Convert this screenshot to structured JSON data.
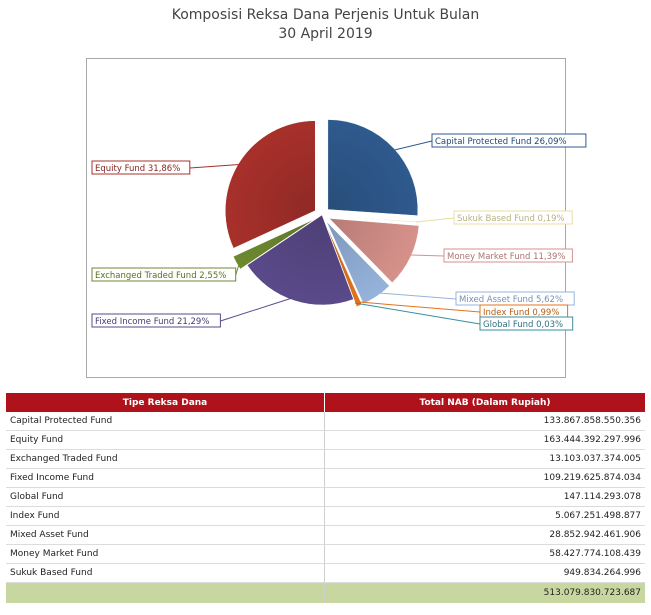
{
  "title_line1": "Komposisi Reksa Dana Perjenis Untuk Bulan",
  "title_line2": "30 April 2019",
  "chart_data": {
    "type": "pie",
    "title": "Komposisi Reksa Dana Perjenis Untuk Bulan 30 April 2019",
    "slices": [
      {
        "name": "Capital Protected Fund",
        "label": "Capital Protected Fund 26,09%",
        "value": 26.09,
        "color": "#2f5a8e",
        "exploded": true
      },
      {
        "name": "Sukuk Based Fund",
        "label": "Sukuk Based Fund 0,19%",
        "value": 0.19,
        "color": "#e8dfa0",
        "exploded": true
      },
      {
        "name": "Money Market Fund",
        "label": "Money Market Fund 11,39%",
        "value": 11.39,
        "color": "#d7918b",
        "exploded": true
      },
      {
        "name": "Mixed Asset Fund",
        "label": "Mixed Asset Fund 5,62%",
        "value": 5.62,
        "color": "#95b3dc",
        "exploded": true
      },
      {
        "name": "Index Fund",
        "label": "Index Fund 0,99%",
        "value": 0.99,
        "color": "#e2731c",
        "exploded": true
      },
      {
        "name": "Global Fund",
        "label": "Global Fund 0,03%",
        "value": 0.03,
        "color": "#3a8da0",
        "exploded": true
      },
      {
        "name": "Fixed Income Fund",
        "label": "Fixed Income Fund 21,29%",
        "value": 21.29,
        "color": "#5a4a8a",
        "exploded": false
      },
      {
        "name": "Exchanged Traded Fund",
        "label": "Exchanged Traded Fund 2,55%",
        "value": 2.55,
        "color": "#6e8a30",
        "exploded": true
      },
      {
        "name": "Equity Fund",
        "label": "Equity Fund 31,86%",
        "value": 31.86,
        "color": "#a8302b",
        "exploded": true
      }
    ]
  },
  "table": {
    "headers": [
      "Tipe Reksa Dana",
      "Total NAB (Dalam Rupiah)"
    ],
    "rows": [
      [
        "Capital Protected Fund",
        "133.867.858.550.356"
      ],
      [
        "Equity Fund",
        "163.444.392.297.996"
      ],
      [
        "Exchanged Traded Fund",
        "13.103.037.374.005"
      ],
      [
        "Fixed Income Fund",
        "109.219.625.874.034"
      ],
      [
        "Global Fund",
        "147.114.293.078"
      ],
      [
        "Index Fund",
        "5.067.251.498.877"
      ],
      [
        "Mixed Asset Fund",
        "28.852.942.461.906"
      ],
      [
        "Money Market Fund",
        "58.427.774.108.439"
      ],
      [
        "Sukuk Based Fund",
        "949.834.264.996"
      ]
    ],
    "total": [
      "",
      "513.079.830.723.687"
    ]
  }
}
